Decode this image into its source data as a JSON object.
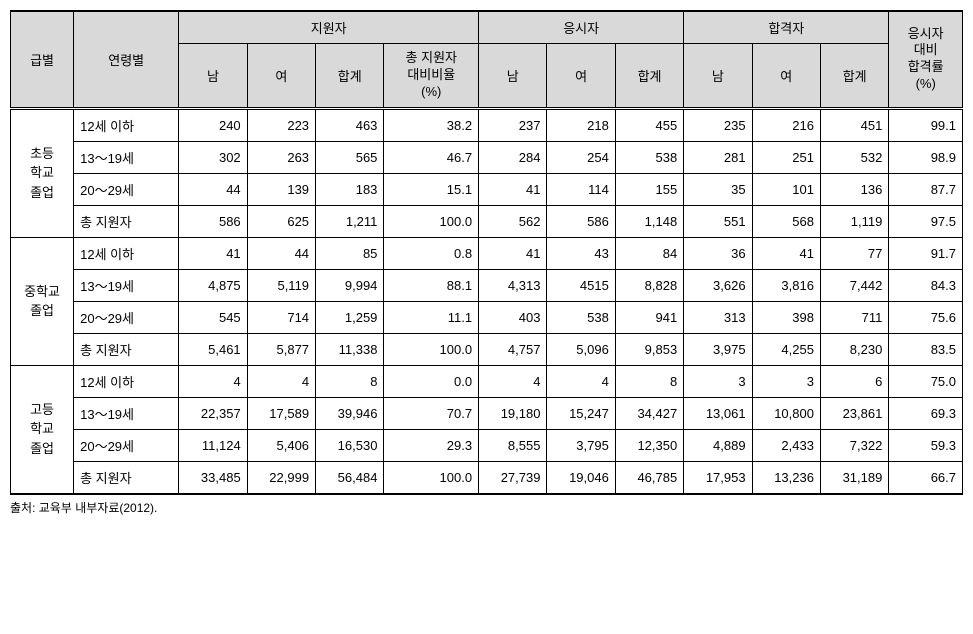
{
  "headers": {
    "grade": "급별",
    "age": "연령별",
    "applicants": "지원자",
    "examinees": "응시자",
    "passers": "합격자",
    "pass_rate": "응시자\n대비\n합격률\n(%)",
    "male": "남",
    "female": "여",
    "total": "합계",
    "ratio": "총 지원자\n대비비율\n(%)"
  },
  "groups": [
    {
      "grade": "초등\n학교\n졸업",
      "rows": [
        {
          "age": "12세 이하",
          "app_m": "240",
          "app_f": "223",
          "app_t": "463",
          "ratio": "38.2",
          "exam_m": "237",
          "exam_f": "218",
          "exam_t": "455",
          "pass_m": "235",
          "pass_f": "216",
          "pass_t": "451",
          "rate": "99.1"
        },
        {
          "age": "13～19세",
          "app_m": "302",
          "app_f": "263",
          "app_t": "565",
          "ratio": "46.7",
          "exam_m": "284",
          "exam_f": "254",
          "exam_t": "538",
          "pass_m": "281",
          "pass_f": "251",
          "pass_t": "532",
          "rate": "98.9"
        },
        {
          "age": "20～29세",
          "app_m": "44",
          "app_f": "139",
          "app_t": "183",
          "ratio": "15.1",
          "exam_m": "41",
          "exam_f": "114",
          "exam_t": "155",
          "pass_m": "35",
          "pass_f": "101",
          "pass_t": "136",
          "rate": "87.7"
        },
        {
          "age": "총 지원자",
          "app_m": "586",
          "app_f": "625",
          "app_t": "1,211",
          "ratio": "100.0",
          "exam_m": "562",
          "exam_f": "586",
          "exam_t": "1,148",
          "pass_m": "551",
          "pass_f": "568",
          "pass_t": "1,119",
          "rate": "97.5"
        }
      ]
    },
    {
      "grade": "중학교\n졸업",
      "rows": [
        {
          "age": "12세 이하",
          "app_m": "41",
          "app_f": "44",
          "app_t": "85",
          "ratio": "0.8",
          "exam_m": "41",
          "exam_f": "43",
          "exam_t": "84",
          "pass_m": "36",
          "pass_f": "41",
          "pass_t": "77",
          "rate": "91.7"
        },
        {
          "age": "13～19세",
          "app_m": "4,875",
          "app_f": "5,119",
          "app_t": "9,994",
          "ratio": "88.1",
          "exam_m": "4,313",
          "exam_f": "4515",
          "exam_t": "8,828",
          "pass_m": "3,626",
          "pass_f": "3,816",
          "pass_t": "7,442",
          "rate": "84.3"
        },
        {
          "age": "20～29세",
          "app_m": "545",
          "app_f": "714",
          "app_t": "1,259",
          "ratio": "11.1",
          "exam_m": "403",
          "exam_f": "538",
          "exam_t": "941",
          "pass_m": "313",
          "pass_f": "398",
          "pass_t": "711",
          "rate": "75.6"
        },
        {
          "age": "총 지원자",
          "app_m": "5,461",
          "app_f": "5,877",
          "app_t": "11,338",
          "ratio": "100.0",
          "exam_m": "4,757",
          "exam_f": "5,096",
          "exam_t": "9,853",
          "pass_m": "3,975",
          "pass_f": "4,255",
          "pass_t": "8,230",
          "rate": "83.5"
        }
      ]
    },
    {
      "grade": "고등\n학교\n졸업",
      "rows": [
        {
          "age": "12세 이하",
          "app_m": "4",
          "app_f": "4",
          "app_t": "8",
          "ratio": "0.0",
          "exam_m": "4",
          "exam_f": "4",
          "exam_t": "8",
          "pass_m": "3",
          "pass_f": "3",
          "pass_t": "6",
          "rate": "75.0"
        },
        {
          "age": "13～19세",
          "app_m": "22,357",
          "app_f": "17,589",
          "app_t": "39,946",
          "ratio": "70.7",
          "exam_m": "19,180",
          "exam_f": "15,247",
          "exam_t": "34,427",
          "pass_m": "13,061",
          "pass_f": "10,800",
          "pass_t": "23,861",
          "rate": "69.3"
        },
        {
          "age": "20～29세",
          "app_m": "11,124",
          "app_f": "5,406",
          "app_t": "16,530",
          "ratio": "29.3",
          "exam_m": "8,555",
          "exam_f": "3,795",
          "exam_t": "12,350",
          "pass_m": "4,889",
          "pass_f": "2,433",
          "pass_t": "7,322",
          "rate": "59.3"
        },
        {
          "age": "총 지원자",
          "app_m": "33,485",
          "app_f": "22,999",
          "app_t": "56,484",
          "ratio": "100.0",
          "exam_m": "27,739",
          "exam_f": "19,046",
          "exam_t": "46,785",
          "pass_m": "17,953",
          "pass_f": "13,236",
          "pass_t": "31,189",
          "rate": "66.7"
        }
      ]
    }
  ],
  "source": "출처: 교육부 내부자료(2012)."
}
